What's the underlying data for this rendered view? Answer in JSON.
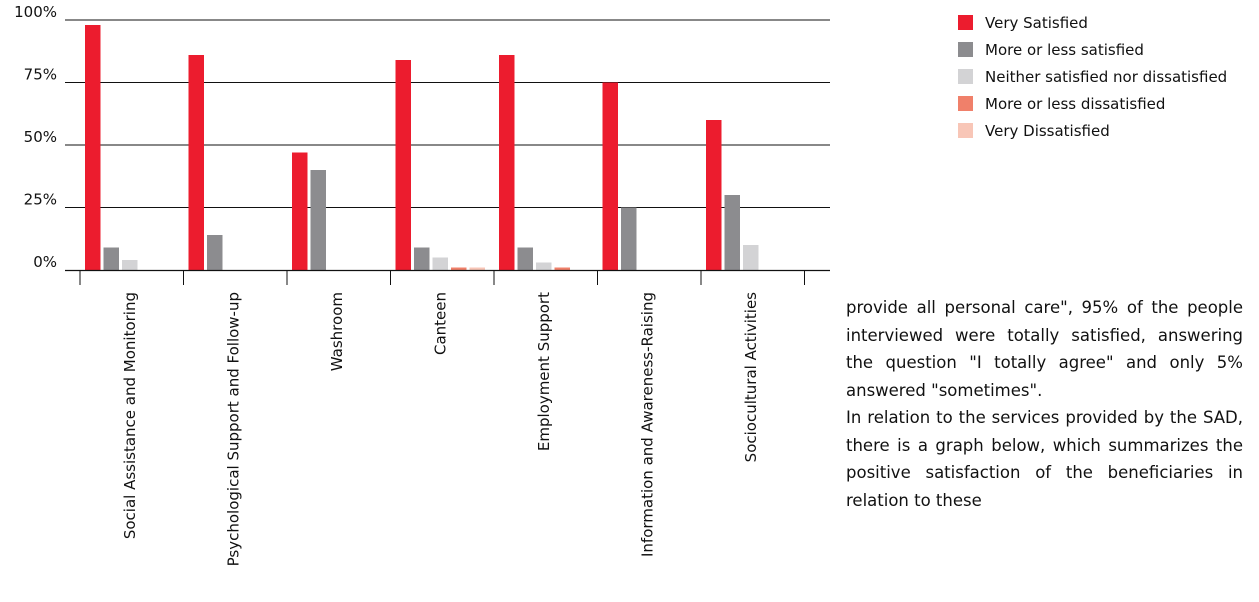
{
  "chart_data": {
    "type": "bar",
    "categories": [
      "Social Assistance and Monitoring",
      "Psychological Support and Follow-up",
      "Washroom",
      "Canteen",
      "Employment Support",
      "Information and Awareness-Raising",
      "Sociocultural Activities"
    ],
    "series": [
      {
        "name": "Very Satisfied",
        "color": "#ec1c2e",
        "values": [
          98,
          86,
          47,
          84,
          86,
          75,
          60
        ]
      },
      {
        "name": "More or less satisfied",
        "color": "#8c8c8f",
        "values": [
          9,
          14,
          40,
          9,
          9,
          25,
          30
        ]
      },
      {
        "name": "Neither satisfied nor dissatisfied",
        "color": "#d3d3d5",
        "values": [
          4,
          0,
          0,
          5,
          3,
          0,
          10
        ]
      },
      {
        "name": "More or less dissatisfied",
        "color": "#f0806a",
        "values": [
          0,
          0,
          0,
          1,
          1,
          0,
          0
        ]
      },
      {
        "name": "Very Dissatisfied",
        "color": "#f8c6b7",
        "values": [
          0,
          0,
          0,
          1,
          0,
          0,
          0
        ]
      }
    ],
    "yticks": [
      "0%",
      "25%",
      "50%",
      "75%",
      "100%"
    ],
    "ylim": [
      0,
      100
    ],
    "grid": true,
    "legend_position": "top-right"
  },
  "text": {
    "paragraph1": "provide all personal care\", 95% of the people interviewed were totally satisfied, answering the question \"I totally agree\" and only 5% answered \"sometimes\".",
    "paragraph2": "In relation to the services provided by the SAD, there is a graph below, which summarizes the positive satisfaction of the beneficiaries in relation to these"
  }
}
